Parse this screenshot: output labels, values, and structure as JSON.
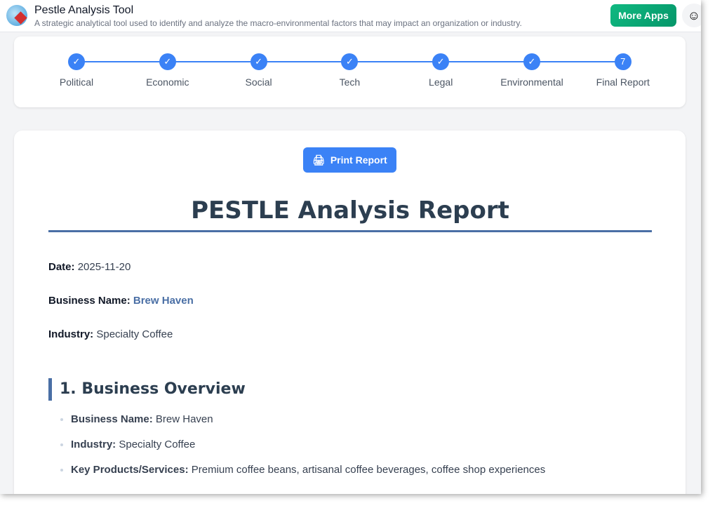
{
  "header": {
    "title": "Pestle Analysis Tool",
    "subtitle": "A strategic analytical tool used to identify and analyze the macro-environmental factors that may impact an organization or industry.",
    "more_apps": "More Apps"
  },
  "steps": [
    {
      "label": "Political",
      "mark": "✓"
    },
    {
      "label": "Economic",
      "mark": "✓"
    },
    {
      "label": "Social",
      "mark": "✓"
    },
    {
      "label": "Tech",
      "mark": "✓"
    },
    {
      "label": "Legal",
      "mark": "✓"
    },
    {
      "label": "Environmental",
      "mark": "✓"
    },
    {
      "label": "Final Report",
      "mark": "7"
    }
  ],
  "report": {
    "print": "Print Report",
    "title": "PESTLE Analysis Report",
    "date_label": "Date:",
    "date": "2025-11-20",
    "bn_label": "Business Name:",
    "bn": "Brew Haven",
    "ind_label": "Industry:",
    "ind": "Specialty Coffee",
    "section1": "1. Business Overview",
    "overview": [
      {
        "k": "Business Name:",
        "v": "Brew Haven"
      },
      {
        "k": "Industry:",
        "v": "Specialty Coffee"
      },
      {
        "k": "Key Products/Services:",
        "v": "Premium coffee beans, artisanal coffee beverages, coffee shop experiences"
      }
    ]
  }
}
